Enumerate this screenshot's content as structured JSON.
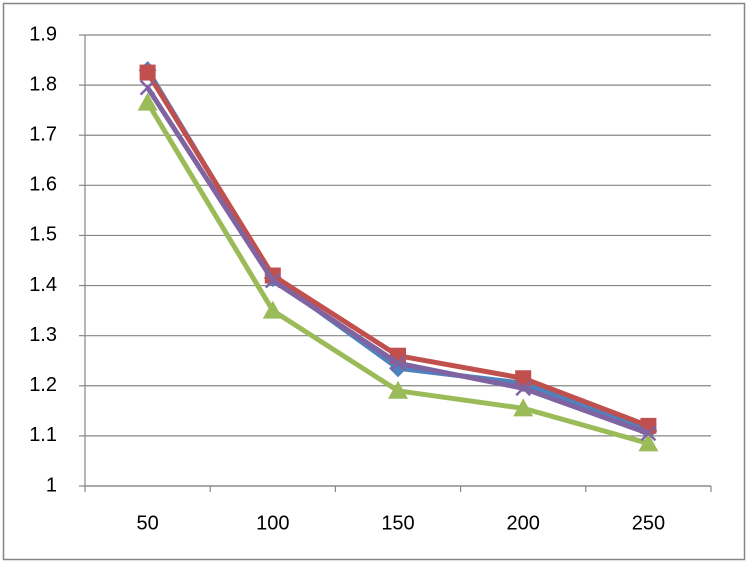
{
  "chart_data": {
    "type": "line",
    "categories": [
      "50",
      "100",
      "150",
      "200",
      "250"
    ],
    "series": [
      {
        "color": "#4f81bd",
        "marker": "diamond",
        "values": [
          1.83,
          1.415,
          1.235,
          1.205,
          1.11
        ]
      },
      {
        "color": "#c0504d",
        "marker": "square",
        "values": [
          1.825,
          1.42,
          1.26,
          1.215,
          1.12
        ]
      },
      {
        "color": "#9bbb59",
        "marker": "triangle",
        "values": [
          1.765,
          1.35,
          1.19,
          1.155,
          1.085
        ]
      },
      {
        "color": "#8064a2",
        "marker": "x",
        "values": [
          1.795,
          1.41,
          1.245,
          1.195,
          1.105
        ]
      }
    ],
    "ylim": [
      1,
      1.9
    ],
    "yticks": [
      1,
      1.1,
      1.2,
      1.3,
      1.4,
      1.5,
      1.6,
      1.7,
      1.8,
      1.9
    ],
    "grid": true
  }
}
